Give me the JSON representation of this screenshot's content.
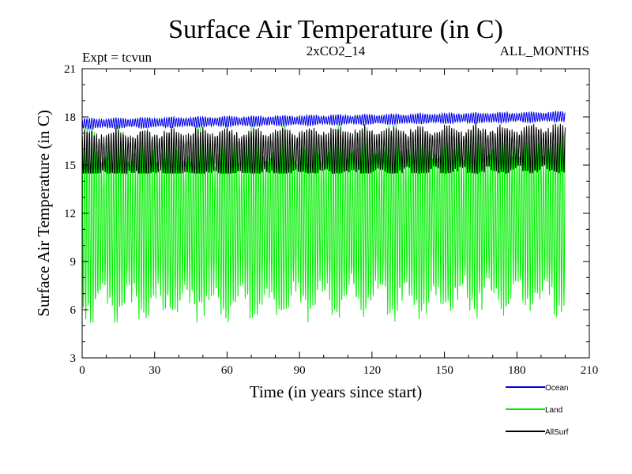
{
  "chart_data": {
    "type": "line",
    "title": "Surface Air Temperature (in C)",
    "annotations": {
      "left": "Expt = tcvun",
      "center": "2xCO2_14",
      "right": "ALL_MONTHS"
    },
    "xlabel": "Time (in years since start)",
    "ylabel": "Surface Air Temperature (in C)",
    "xlim": [
      0,
      210
    ],
    "ylim": [
      3,
      21
    ],
    "x_ticks": [
      0,
      30,
      60,
      90,
      120,
      150,
      180,
      210
    ],
    "y_ticks": [
      3,
      6,
      9,
      12,
      15,
      18,
      21
    ],
    "x_minor_step": 10,
    "y_minor_step": 1,
    "x_end": 200,
    "samples_per_year": 12,
    "grid": false,
    "legend_position": "bottom-right",
    "series": [
      {
        "name": "Ocean",
        "color": "#0000ee",
        "mean": 17.8,
        "seasonal_half_range": 0.3,
        "trend_per_year": 0.0022,
        "min": 17.2,
        "max": 18.8
      },
      {
        "name": "Land",
        "color": "#00ee00",
        "mean": 11.5,
        "seasonal_half_range": 5.3,
        "trend_per_year": 0.002,
        "min": 5.2,
        "max": 17.5
      },
      {
        "name": "AllSurf",
        "color": "#000000",
        "mean": 15.8,
        "seasonal_half_range": 1.4,
        "trend_per_year": 0.002,
        "min": 14.5,
        "max": 17.8
      }
    ]
  }
}
